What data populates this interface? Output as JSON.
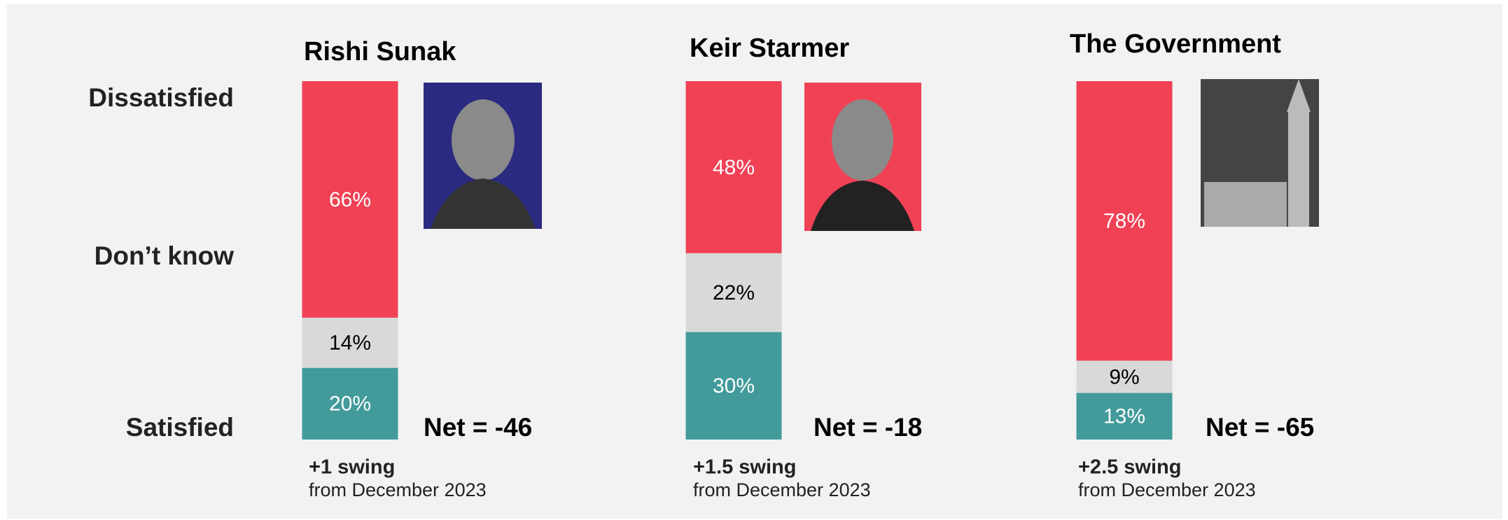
{
  "chart_data": {
    "type": "bar",
    "stacked": true,
    "categories": [
      "Rishi Sunak",
      "Keir Starmer",
      "The Government"
    ],
    "series": [
      {
        "name": "Satisfied",
        "color": "#429a9a",
        "values": [
          20,
          30,
          13
        ],
        "value_labels": [
          "20%",
          "30%",
          "13%"
        ]
      },
      {
        "name": "Don’t know",
        "color": "#d9d9d9",
        "values": [
          14,
          22,
          9
        ],
        "value_labels": [
          "14%",
          "22%",
          "9%"
        ]
      },
      {
        "name": "Dissatisfied",
        "color": "#f04155",
        "values": [
          66,
          48,
          78
        ],
        "value_labels": [
          "66%",
          "48%",
          "78%"
        ]
      }
    ],
    "net_labels": [
      "Net = -46",
      "Net = -18",
      "Net = -65"
    ],
    "swing_labels": [
      "+1 swing",
      "+1.5 swing",
      "+2.5 swing"
    ],
    "swing_notes": [
      "from December 2023",
      "from December 2023",
      "from December 2023"
    ]
  }
}
